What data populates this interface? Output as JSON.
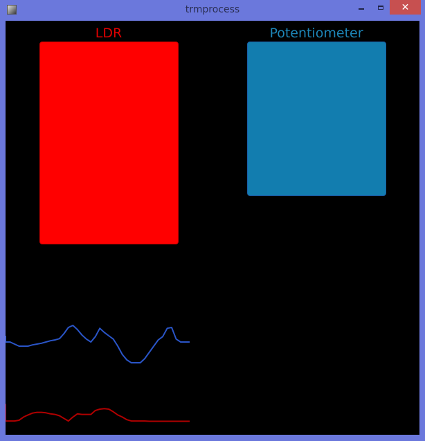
{
  "window": {
    "title": "trmprocess",
    "close_glyph": "✕"
  },
  "colors": {
    "ldr": "#ff0000",
    "ldr_label": "#e00000",
    "potentiometer": "#127daf",
    "potentiometer_label": "#1d86b8",
    "ldr_trace": "#b00000",
    "potentiometer_trace": "#2a55c8"
  },
  "meters": {
    "ldr": {
      "label": "LDR",
      "level": 1.0
    },
    "potentiometer": {
      "label": "Potentiometer",
      "level": 0.76
    }
  },
  "chart_data": [
    {
      "type": "line",
      "series": [
        {
          "values": [
            0.55,
            0.55,
            0.5,
            0.45,
            0.45,
            0.45,
            0.48,
            0.5,
            0.52,
            0.55,
            0.58,
            0.6,
            0.63,
            0.75,
            0.9,
            0.95,
            0.85,
            0.72,
            0.62,
            0.55,
            0.68,
            0.88,
            0.78,
            0.7,
            0.62,
            0.45,
            0.25,
            0.12,
            0.05,
            0.05,
            0.05,
            0.15,
            0.3,
            0.45,
            0.6,
            0.68,
            0.88,
            0.9,
            0.62,
            0.55,
            0.55,
            0.55
          ]
        },
        {
          "values": [
            0.05,
            0.05,
            0.05,
            0.08,
            0.2,
            0.28,
            0.35,
            0.38,
            0.38,
            0.36,
            0.32,
            0.3,
            0.25,
            0.15,
            0.05,
            0.2,
            0.32,
            0.3,
            0.3,
            0.3,
            0.45,
            0.5,
            0.52,
            0.5,
            0.4,
            0.28,
            0.2,
            0.1,
            0.05,
            0.05,
            0.05,
            0.05,
            0.04,
            0.04,
            0.04,
            0.04,
            0.04,
            0.04,
            0.04,
            0.04,
            0.04,
            0.04
          ]
        }
      ]
    }
  ]
}
